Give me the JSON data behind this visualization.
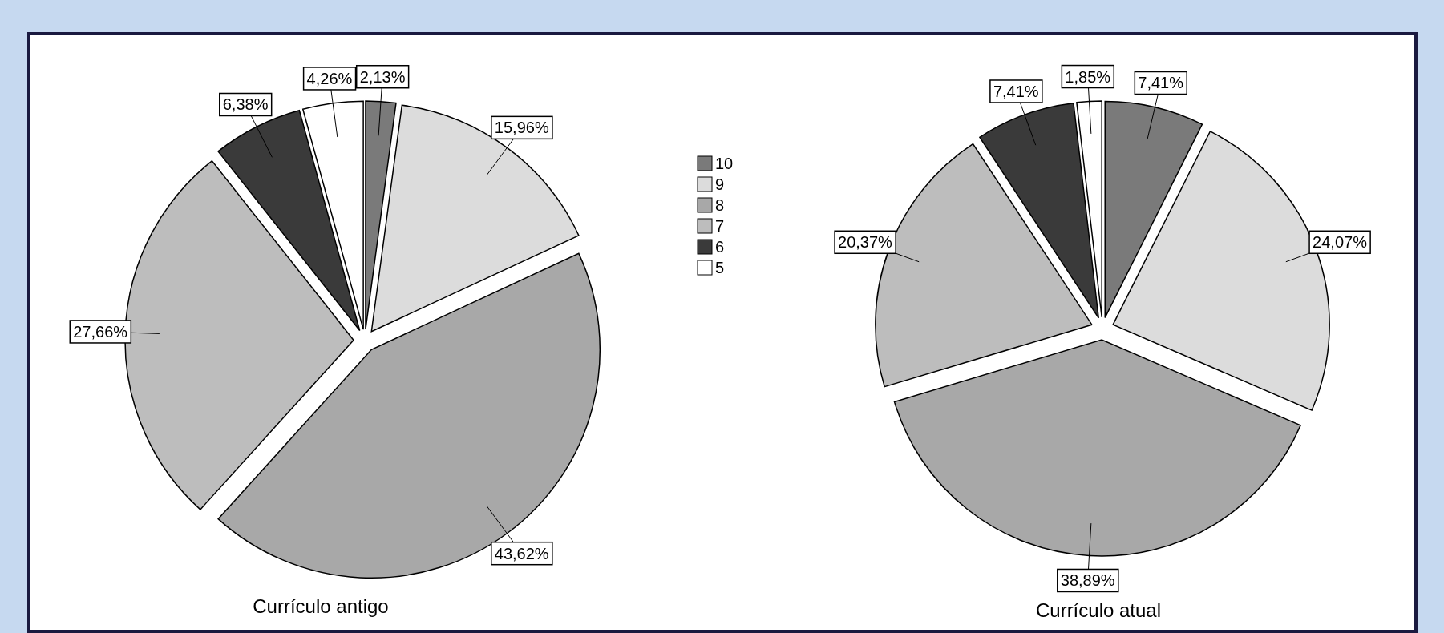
{
  "chart_data": [
    {
      "type": "pie",
      "title": "Currículo antigo",
      "categories": [
        "10",
        "9",
        "8",
        "7",
        "6",
        "5"
      ],
      "values": [
        2.13,
        15.96,
        43.62,
        27.66,
        6.38,
        4.26
      ],
      "value_labels": [
        "2,13%",
        "15,96%",
        "43,62%",
        "27,66%",
        "6,38%",
        "4,26%"
      ],
      "colors": [
        "#7a7a7a",
        "#dcdcdc",
        "#a8a8a8",
        "#bdbdbd",
        "#3a3a3a",
        "#ffffff"
      ],
      "legend": "right"
    },
    {
      "type": "pie",
      "title": "Currículo atual",
      "categories": [
        null,
        null,
        null,
        null,
        null,
        null
      ],
      "values": [
        7.41,
        24.07,
        38.89,
        20.37,
        7.41,
        1.85
      ],
      "value_labels": [
        "7,41%",
        "24,07%",
        "38,89%",
        "20,37%",
        "7,41%",
        "1,85%"
      ],
      "colors": [
        "#7a7a7a",
        "#dcdcdc",
        "#a8a8a8",
        "#bdbdbd",
        "#3a3a3a",
        "#ffffff"
      ]
    }
  ]
}
